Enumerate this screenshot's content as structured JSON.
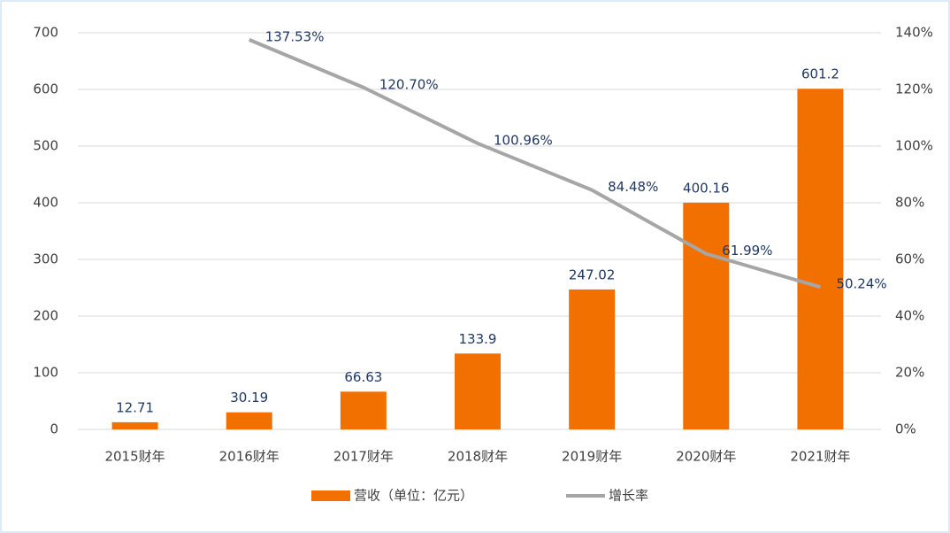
{
  "chart_data": {
    "type": "bar",
    "categories": [
      "2015财年",
      "2016财年",
      "2017财年",
      "2018财年",
      "2019财年",
      "2020财年",
      "2021财年"
    ],
    "series": [
      {
        "name": "营收（单位：亿元）",
        "type": "bar",
        "color": "#f27000",
        "values": [
          12.71,
          30.19,
          66.63,
          133.9,
          247.02,
          400.16,
          601.2
        ]
      },
      {
        "name": "增长率",
        "type": "line",
        "axis": "y2",
        "color": "#a6a6a6",
        "values": [
          null,
          137.53,
          120.7,
          100.96,
          84.48,
          61.99,
          50.24
        ],
        "value_labels": [
          null,
          "137.53%",
          "120.70%",
          "100.96%",
          "84.48%",
          "61.99%",
          "50.24%"
        ]
      }
    ],
    "ylim": [
      0,
      700
    ],
    "yticks": [
      0,
      100,
      200,
      300,
      400,
      500,
      600,
      700
    ],
    "y2lim": [
      0,
      140
    ],
    "y2ticks": [
      {
        "value": 0,
        "label": "0%"
      },
      {
        "value": 20,
        "label": "20%"
      },
      {
        "value": 40,
        "label": "40%"
      },
      {
        "value": 60,
        "label": "60%"
      },
      {
        "value": 80,
        "label": "80%"
      },
      {
        "value": 100,
        "label": "100%"
      },
      {
        "value": 120,
        "label": "120%"
      },
      {
        "value": 140,
        "label": "140%"
      }
    ],
    "grid": true,
    "legend": "bottom"
  }
}
